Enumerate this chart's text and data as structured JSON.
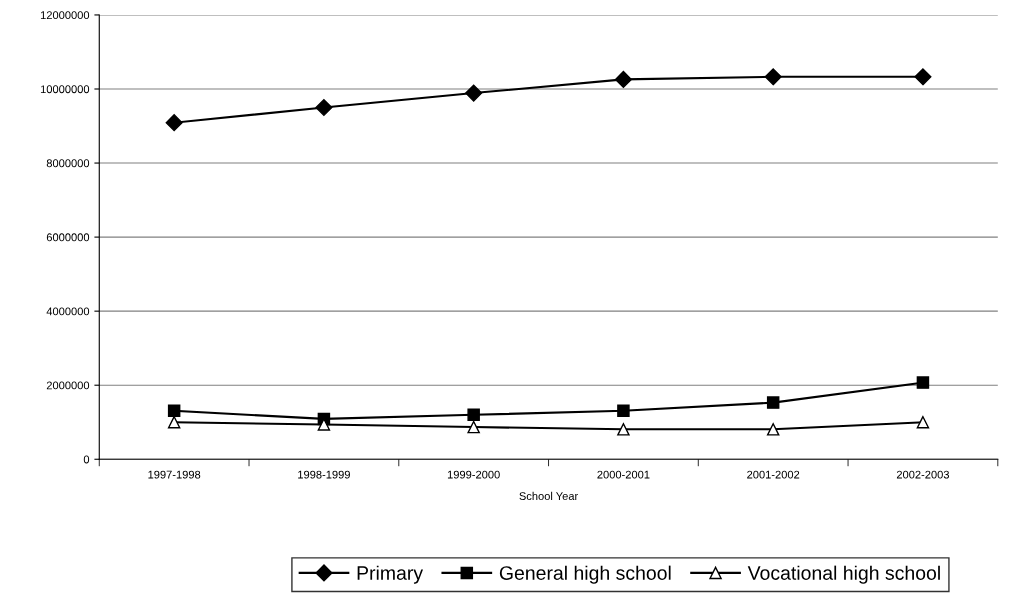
{
  "chart_data": {
    "type": "line",
    "xlabel": "School Year",
    "categories": [
      "1997-1998",
      "1998-1999",
      "1999-2000",
      "2000-2001",
      "2001-2002",
      "2002-2003"
    ],
    "series": [
      {
        "name": "Primary",
        "color": "#000000",
        "marker": "diamond",
        "values": [
          9090000,
          9500000,
          9890000,
          10260000,
          10330000,
          10330000
        ]
      },
      {
        "name": "General high school",
        "color": "#000000",
        "marker": "square",
        "values": [
          1310000,
          1090000,
          1200000,
          1310000,
          1530000,
          2070000
        ]
      },
      {
        "name": "Vocational high school",
        "color": "#000000",
        "marker": "triangle",
        "values": [
          1000000,
          940000,
          870000,
          810000,
          810000,
          1000000
        ]
      }
    ],
    "ylim": [
      0,
      12000000
    ],
    "yticks": [
      0,
      2000000,
      4000000,
      6000000,
      8000000,
      10000000,
      12000000
    ],
    "grid": "y",
    "legend": "bottom",
    "line_style": "solid"
  }
}
